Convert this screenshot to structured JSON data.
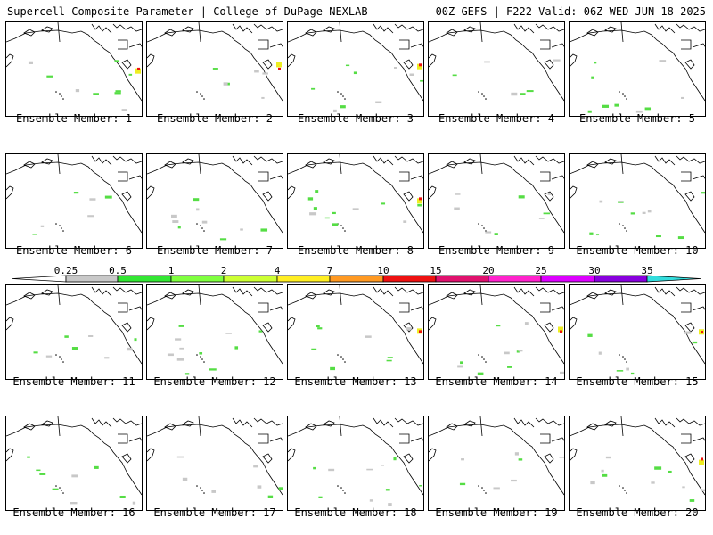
{
  "header": {
    "left": "Supercell Composite Parameter | College of DuPage NEXLAB",
    "right": "00Z GEFS | F222 Valid: 06Z WED JUN 18 2025"
  },
  "caption_prefix": "Ensemble Member:",
  "members": [
    "1",
    "2",
    "3",
    "4",
    "5",
    "6",
    "7",
    "8",
    "9",
    "10",
    "11",
    "12",
    "13",
    "14",
    "15",
    "16",
    "17",
    "18",
    "19",
    "20"
  ],
  "colorbar": {
    "labels": [
      "0.25",
      "0.5",
      "1",
      "2",
      "4",
      "7",
      "10",
      "15",
      "20",
      "25",
      "30",
      "35"
    ],
    "colors": [
      "#c8c8c8",
      "#33e633",
      "#7fff3f",
      "#ccff33",
      "#ffee22",
      "#ff9922",
      "#ee1111",
      "#e0116e",
      "#ff22cc",
      "#dd00ff",
      "#8800dd",
      "#aa55dd",
      "#33dddd"
    ]
  },
  "map_colors": {
    "coast": "#000000",
    "gray": "#c8c8c8",
    "green": "#55dd44",
    "yellow": "#eeee22",
    "red": "#ee1111",
    "orange": "#ff9922"
  }
}
